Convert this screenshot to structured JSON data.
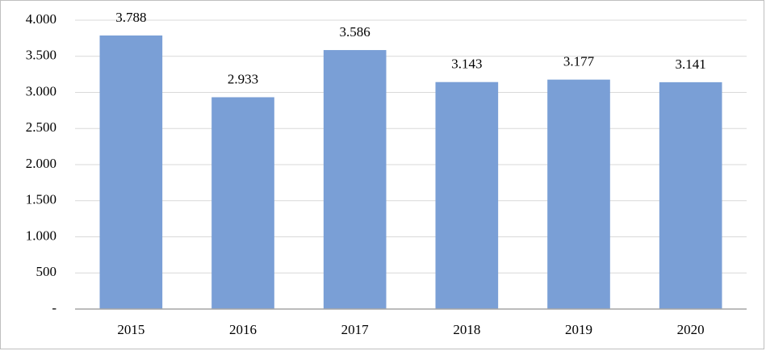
{
  "chart_data": {
    "type": "bar",
    "categories": [
      "2015",
      "2016",
      "2017",
      "2018",
      "2019",
      "2020"
    ],
    "values": [
      3788,
      2933,
      3586,
      3143,
      3177,
      3141
    ],
    "value_labels": [
      "3.788",
      "2.933",
      "3.586",
      "3.143",
      "3.177",
      "3.141"
    ],
    "color": "#7a9fd6",
    "ylim": [
      0,
      4000
    ],
    "yticks": [
      {
        "value": 0,
        "label": "-"
      },
      500,
      {
        "value": 1000,
        "label": "1.000"
      },
      {
        "value": 1500,
        "label": "1.500"
      },
      {
        "value": 2000,
        "label": "2.000"
      },
      {
        "value": 2500,
        "label": "2.500"
      },
      {
        "value": 3000,
        "label": "3.000"
      },
      {
        "value": 3500,
        "label": "3.500"
      },
      {
        "value": 4000,
        "label": "4.000"
      }
    ],
    "grid": true
  }
}
